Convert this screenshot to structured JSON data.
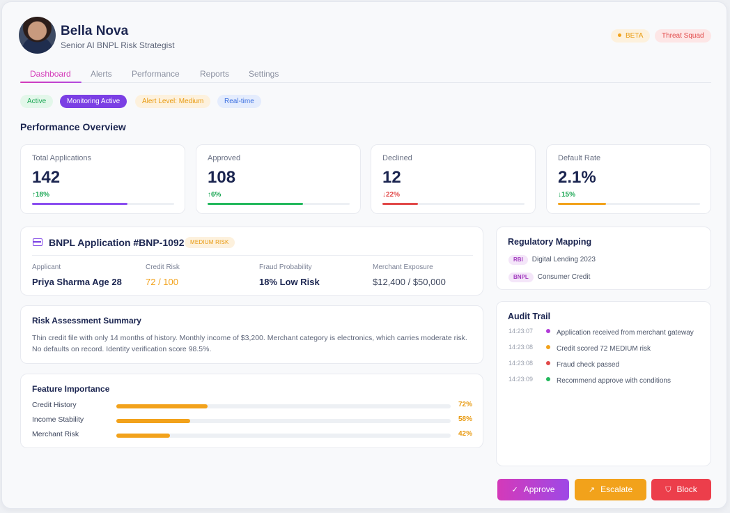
{
  "profile": {
    "name": "Bella Nova",
    "role": "Senior AI BNPL Risk Strategist",
    "badges": {
      "beta": "BETA",
      "squad": "Threat Squad"
    }
  },
  "tabs": [
    {
      "label": "Dashboard",
      "active": true
    },
    {
      "label": "Alerts"
    },
    {
      "label": "Performance"
    },
    {
      "label": "Reports"
    },
    {
      "label": "Settings"
    }
  ],
  "status_chips": {
    "active": "Active",
    "monitoring": "Monitoring Active",
    "alert": "Alert Level: Medium",
    "realtime": "Real-time"
  },
  "performance": {
    "title": "Performance Overview",
    "cards": [
      {
        "label": "Total Applications",
        "value": "142",
        "change": "↑18%",
        "direction": "up",
        "progress": 0.67,
        "color": "#8a4df0"
      },
      {
        "label": "Approved",
        "value": "108",
        "change": "↑6%",
        "direction": "up",
        "progress": 0.67,
        "color": "#22b85c"
      },
      {
        "label": "Declined",
        "value": "12",
        "change": "↓22%",
        "direction": "down",
        "progress": 0.25,
        "color": "#e14848"
      },
      {
        "label": "Default Rate",
        "value": "2.1%",
        "change": "↓15%",
        "direction": "down-good",
        "progress": 0.34,
        "color": "#f2a21b"
      }
    ]
  },
  "application": {
    "title": "BNPL Application #BNP-1092",
    "risk_tag": "MEDIUM RISK",
    "fields": [
      {
        "label": "Applicant",
        "value": "Priya Sharma Age 28"
      },
      {
        "label": "Credit Risk",
        "value": "72 / 100"
      },
      {
        "label": "Fraud Probability",
        "value": "18% Low Risk"
      },
      {
        "label": "Merchant Exposure",
        "value": "$12,400 / $50,000"
      }
    ]
  },
  "summary": {
    "title": "Risk Assessment Summary",
    "text": "Thin credit file with only 14 months of history. Monthly income of $3,200. Merchant category is electronics, which carries moderate risk. No defaults on record. Identity verification score 98.5%."
  },
  "features": {
    "title": "Feature Importance",
    "items": [
      {
        "label": "Credit History",
        "percent": "72%",
        "value": 0.72
      },
      {
        "label": "Income Stability",
        "percent": "58%",
        "value": 0.58
      },
      {
        "label": "Merchant Risk",
        "percent": "42%",
        "value": 0.42
      }
    ]
  },
  "regulatory": {
    "title": "Regulatory Mapping",
    "items": [
      {
        "tag": "RBI",
        "text": "Digital Lending 2023"
      },
      {
        "tag": "BNPL",
        "text": "Consumer Credit"
      }
    ]
  },
  "audit": {
    "title": "Audit Trail",
    "items": [
      {
        "time": "14:23:07",
        "text": "Application received from merchant gateway",
        "color": "#b13ad8"
      },
      {
        "time": "14:23:08",
        "text": "Credit scored 72 MEDIUM risk",
        "color": "#f2a21b"
      },
      {
        "time": "14:23:08",
        "text": "Fraud check passed",
        "color": "#e14848"
      },
      {
        "time": "14:23:09",
        "text": "Recommend approve with conditions",
        "color": "#22b85c"
      }
    ]
  },
  "actions": {
    "approve": "Approve",
    "escalate": "Escalate",
    "block": "Block"
  }
}
